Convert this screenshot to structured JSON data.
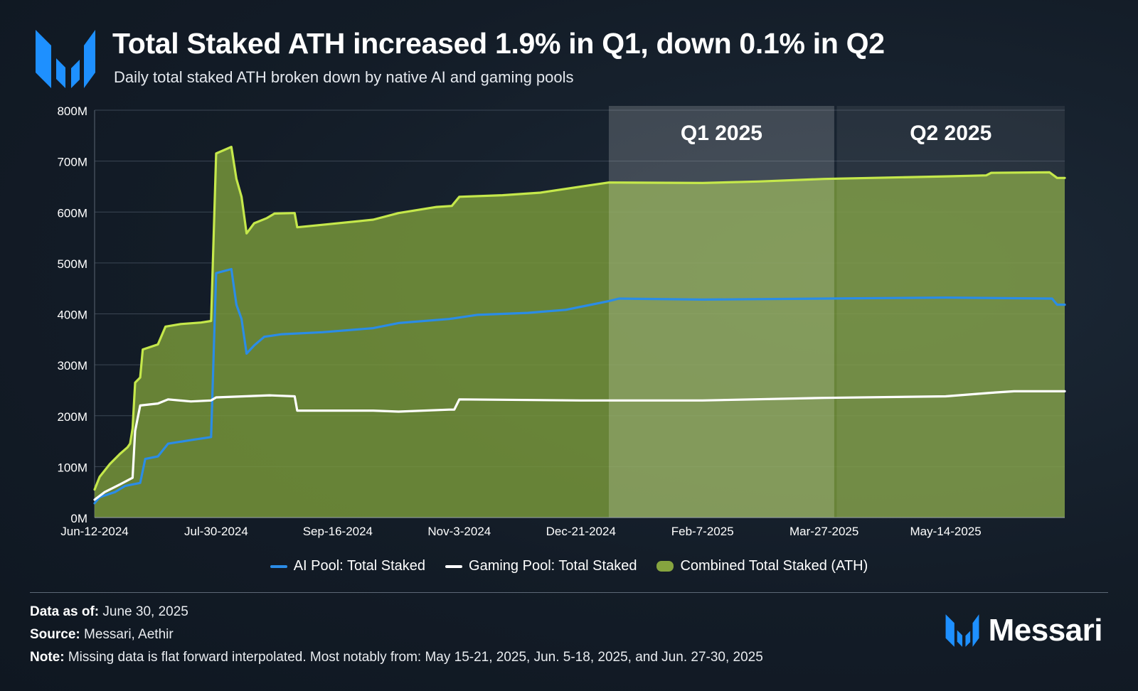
{
  "header": {
    "title": "Total Staked ATH increased 1.9% in Q1, down 0.1% in Q2",
    "subtitle": "Daily total staked ATH broken down by native AI and gaming pools"
  },
  "colors": {
    "ai": "#2b8ce6",
    "gaming": "#ffffff",
    "combined_line": "#c5e84b",
    "combined_fill": "#7a9a3a",
    "accent": "#1e90ff"
  },
  "chart_data": {
    "type": "area",
    "title": "Total Staked ATH increased 1.9% in Q1, down 0.1% in Q2",
    "subtitle": "Daily total staked ATH broken down by native AI and gaming pools",
    "xlabel": "",
    "ylabel": "",
    "ylim": [
      0,
      800
    ],
    "y_unit": "M",
    "y_ticks": [
      "0M",
      "100M",
      "200M",
      "300M",
      "400M",
      "500M",
      "600M",
      "700M",
      "800M"
    ],
    "x_ticks": [
      "Jun-12-2024",
      "Jul-30-2024",
      "Sep-16-2024",
      "Nov-3-2024",
      "Dec-21-2024",
      "Feb-7-2025",
      "Mar-27-2025",
      "May-14-2025"
    ],
    "x_range": [
      "2024-06-12",
      "2025-06-30"
    ],
    "grid": "horizontal",
    "legend_position": "bottom",
    "bands": [
      {
        "label": "Q1 2025",
        "start": "2025-01-01",
        "end": "2025-03-31"
      },
      {
        "label": "Q2 2025",
        "start": "2025-04-01",
        "end": "2025-06-30"
      }
    ],
    "series": [
      {
        "name": "AI Pool: Total Staked",
        "kind": "line",
        "points": [
          [
            "2024-06-12",
            28
          ],
          [
            "2024-06-14",
            40
          ],
          [
            "2024-06-20",
            50
          ],
          [
            "2024-06-24",
            62
          ],
          [
            "2024-06-30",
            68
          ],
          [
            "2024-07-02",
            115
          ],
          [
            "2024-07-07",
            120
          ],
          [
            "2024-07-11",
            145
          ],
          [
            "2024-07-20",
            152
          ],
          [
            "2024-07-28",
            158
          ],
          [
            "2024-07-30",
            480
          ],
          [
            "2024-08-05",
            488
          ],
          [
            "2024-08-07",
            418
          ],
          [
            "2024-08-09",
            390
          ],
          [
            "2024-08-11",
            322
          ],
          [
            "2024-08-14",
            338
          ],
          [
            "2024-08-18",
            355
          ],
          [
            "2024-08-25",
            360
          ],
          [
            "2024-09-10",
            364
          ],
          [
            "2024-09-30",
            372
          ],
          [
            "2024-10-10",
            382
          ],
          [
            "2024-10-30",
            390
          ],
          [
            "2024-11-10",
            398
          ],
          [
            "2024-11-30",
            402
          ],
          [
            "2024-12-15",
            408
          ],
          [
            "2024-12-21",
            414
          ],
          [
            "2025-01-01",
            425
          ],
          [
            "2025-01-05",
            430
          ],
          [
            "2025-02-07",
            428
          ],
          [
            "2025-03-27",
            430
          ],
          [
            "2025-05-14",
            432
          ],
          [
            "2025-06-25",
            430
          ],
          [
            "2025-06-27",
            418
          ],
          [
            "2025-06-30",
            418
          ]
        ]
      },
      {
        "name": "Gaming Pool: Total Staked",
        "kind": "line",
        "points": [
          [
            "2024-06-12",
            35
          ],
          [
            "2024-06-16",
            50
          ],
          [
            "2024-06-22",
            65
          ],
          [
            "2024-06-27",
            78
          ],
          [
            "2024-06-28",
            170
          ],
          [
            "2024-06-30",
            220
          ],
          [
            "2024-07-07",
            224
          ],
          [
            "2024-07-11",
            232
          ],
          [
            "2024-07-20",
            228
          ],
          [
            "2024-07-28",
            230
          ],
          [
            "2024-07-30",
            236
          ],
          [
            "2024-08-10",
            238
          ],
          [
            "2024-08-20",
            240
          ],
          [
            "2024-08-30",
            238
          ],
          [
            "2024-08-31",
            210
          ],
          [
            "2024-09-30",
            210
          ],
          [
            "2024-10-10",
            208
          ],
          [
            "2024-10-30",
            212
          ],
          [
            "2024-11-01",
            212
          ],
          [
            "2024-11-03",
            232
          ],
          [
            "2024-12-21",
            230
          ],
          [
            "2025-02-07",
            230
          ],
          [
            "2025-03-27",
            235
          ],
          [
            "2025-05-14",
            238
          ],
          [
            "2025-06-01",
            245
          ],
          [
            "2025-06-10",
            248
          ],
          [
            "2025-06-30",
            248
          ]
        ]
      },
      {
        "name": "Combined Total Staked (ATH)",
        "kind": "area",
        "points": [
          [
            "2024-06-12",
            55
          ],
          [
            "2024-06-14",
            80
          ],
          [
            "2024-06-18",
            105
          ],
          [
            "2024-06-22",
            125
          ],
          [
            "2024-06-25",
            138
          ],
          [
            "2024-06-26",
            145
          ],
          [
            "2024-06-27",
            175
          ],
          [
            "2024-06-28",
            265
          ],
          [
            "2024-06-30",
            275
          ],
          [
            "2024-07-01",
            330
          ],
          [
            "2024-07-07",
            340
          ],
          [
            "2024-07-10",
            375
          ],
          [
            "2024-07-16",
            380
          ],
          [
            "2024-07-24",
            383
          ],
          [
            "2024-07-28",
            386
          ],
          [
            "2024-07-30",
            715
          ],
          [
            "2024-08-05",
            728
          ],
          [
            "2024-08-07",
            665
          ],
          [
            "2024-08-09",
            630
          ],
          [
            "2024-08-11",
            558
          ],
          [
            "2024-08-14",
            578
          ],
          [
            "2024-08-19",
            588
          ],
          [
            "2024-08-22",
            597
          ],
          [
            "2024-08-30",
            598
          ],
          [
            "2024-08-31",
            570
          ],
          [
            "2024-09-10",
            575
          ],
          [
            "2024-09-30",
            585
          ],
          [
            "2024-10-10",
            598
          ],
          [
            "2024-10-25",
            610
          ],
          [
            "2024-10-31",
            612
          ],
          [
            "2024-11-03",
            630
          ],
          [
            "2024-11-20",
            633
          ],
          [
            "2024-12-05",
            638
          ],
          [
            "2024-12-21",
            650
          ],
          [
            "2025-01-01",
            658
          ],
          [
            "2025-02-07",
            657
          ],
          [
            "2025-03-01",
            660
          ],
          [
            "2025-03-27",
            665
          ],
          [
            "2025-05-14",
            670
          ],
          [
            "2025-05-30",
            672
          ],
          [
            "2025-06-01",
            677
          ],
          [
            "2025-06-24",
            678
          ],
          [
            "2025-06-27",
            667
          ],
          [
            "2025-06-30",
            667
          ]
        ]
      }
    ]
  },
  "legend": [
    {
      "label": "AI Pool: Total Staked"
    },
    {
      "label": "Gaming Pool: Total Staked"
    },
    {
      "label": "Combined Total Staked (ATH)"
    }
  ],
  "footer": {
    "data_label": "Data as of:",
    "data_value": " June 30, 2025",
    "source_label": "Source:",
    "source_value": " Messari, Aethir",
    "note_label": "Note:",
    "note_value": " Missing data is flat forward interpolated. Most notably from: May 15-21, 2025, Jun. 5-18, 2025, and Jun. 27-30, 2025"
  },
  "brand": {
    "name": "Messari"
  }
}
